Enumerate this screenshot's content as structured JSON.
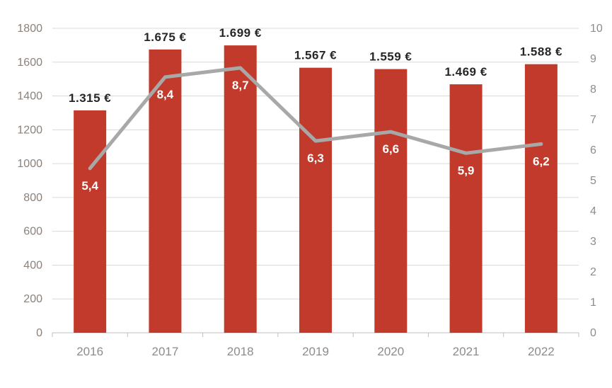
{
  "chart_data": {
    "type": "bar",
    "subtype": "combo-bar-line",
    "title": "",
    "xlabel": "",
    "ylabel": "",
    "categories": [
      "2016",
      "2017",
      "2018",
      "2019",
      "2020",
      "2021",
      "2022"
    ],
    "series": [
      {
        "name": "euro-values-bars",
        "type": "bar",
        "axis": "left",
        "values": [
          1315,
          1675,
          1699,
          1567,
          1559,
          1469,
          1588
        ],
        "labels": [
          "1.315 €",
          "1.675 €",
          "1.699 €",
          "1.567 €",
          "1.559 €",
          "1.469 €",
          "1.588 €"
        ],
        "color": "#c13a2b"
      },
      {
        "name": "gray-line",
        "type": "line",
        "axis": "right",
        "values": [
          5.4,
          8.4,
          8.7,
          6.3,
          6.6,
          5.9,
          6.2
        ],
        "labels": [
          "5,4",
          "8,4",
          "8,7",
          "6,3",
          "6,6",
          "5,9",
          "6,2"
        ],
        "color": "#a8a8a8"
      }
    ],
    "left_axis": {
      "min": 0,
      "max": 1800,
      "step": 200,
      "ticks": [
        "0",
        "200",
        "400",
        "600",
        "800",
        "1000",
        "1200",
        "1400",
        "1600",
        "1800"
      ]
    },
    "right_axis": {
      "min": 0,
      "max": 10,
      "step": 1,
      "ticks": [
        "0",
        "1",
        "2",
        "3",
        "4",
        "5",
        "6",
        "7",
        "8",
        "9",
        "10"
      ]
    },
    "grid": true,
    "legend": "none",
    "colors": {
      "background": "#ffffff",
      "grid": "#d9d9d9",
      "axis_line": "#bfbfbf",
      "left_axis_text": "#8c8179",
      "right_axis_text": "#8c8c8c",
      "x_axis_text": "#8c8c8c",
      "bar_label_text": "#262626",
      "line_label_text": "#ffffff"
    }
  }
}
